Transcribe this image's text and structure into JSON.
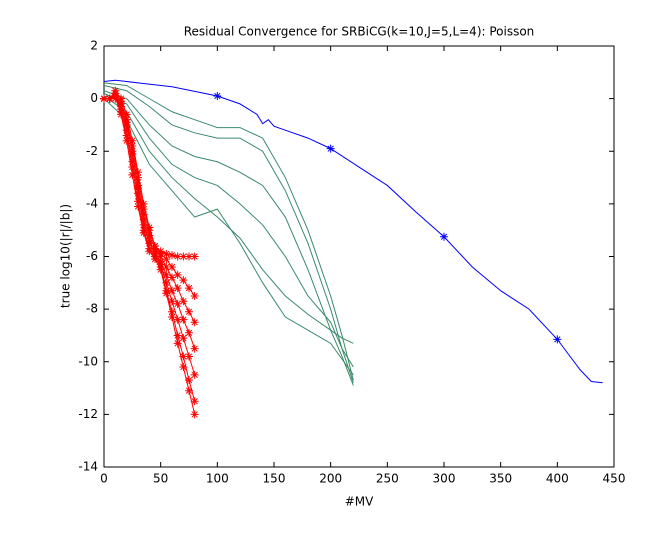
{
  "chart_data": {
    "type": "line",
    "title": "Residual Convergence for SRBiCG(k=10,J=5,L=4): Poisson",
    "x_label": "#MV",
    "y_label": "true log10(|r|/|b|)",
    "xlim": [
      0,
      450
    ],
    "ylim": [
      -14,
      2
    ],
    "xticks": [
      0,
      50,
      100,
      150,
      200,
      250,
      300,
      350,
      400,
      450
    ],
    "yticks": [
      -14,
      -12,
      -10,
      -8,
      -6,
      -4,
      -2,
      0,
      2
    ],
    "grid": false,
    "series": [
      {
        "color": "#0000ff",
        "line": true,
        "marker": "none",
        "x": [
          0,
          10,
          30,
          60,
          100,
          120,
          135,
          140,
          145,
          150,
          160,
          180,
          200,
          225,
          250,
          275,
          300,
          325,
          350,
          375,
          400,
          420,
          430,
          440
        ],
        "values": [
          0.65,
          0.7,
          0.6,
          0.45,
          0.1,
          -0.2,
          -0.6,
          -0.95,
          -0.8,
          -1.05,
          -1.2,
          -1.5,
          -1.9,
          -2.6,
          -3.3,
          -4.3,
          -5.25,
          -6.4,
          -7.3,
          -8.0,
          -9.15,
          -10.3,
          -10.75,
          -10.8
        ]
      },
      {
        "color": "#0000ff",
        "line": false,
        "marker": "*",
        "x": [
          100,
          200,
          300,
          400
        ],
        "values": [
          0.1,
          -1.9,
          -5.25,
          -9.15
        ]
      },
      {
        "color": "#3a8a6a",
        "line": true,
        "marker": "none",
        "x": [
          0,
          20,
          40,
          60,
          80,
          100,
          120,
          140,
          160,
          180,
          200,
          210,
          220
        ],
        "values": [
          0.6,
          0.5,
          0,
          -0.5,
          -0.8,
          -1.1,
          -1.1,
          -1.5,
          -3,
          -5,
          -7.5,
          -9,
          -10.7
        ]
      },
      {
        "color": "#3a8a6a",
        "line": true,
        "marker": "none",
        "x": [
          0,
          20,
          40,
          60,
          80,
          100,
          120,
          140,
          160,
          180,
          200,
          210,
          220
        ],
        "values": [
          0.5,
          0.3,
          -0.3,
          -1,
          -1.3,
          -1.5,
          -1.5,
          -2,
          -3.5,
          -5.5,
          -8,
          -9.5,
          -10.8
        ]
      },
      {
        "color": "#3a8a6a",
        "line": true,
        "marker": "none",
        "x": [
          0,
          20,
          40,
          60,
          80,
          100,
          120,
          140,
          160,
          180,
          200,
          210,
          220
        ],
        "values": [
          0.3,
          0,
          -1,
          -1.8,
          -2.2,
          -2.4,
          -2.8,
          -3.3,
          -4.5,
          -6.5,
          -8.8,
          -9.8,
          -10.9
        ]
      },
      {
        "color": "#3a8a6a",
        "line": true,
        "marker": "none",
        "x": [
          0,
          20,
          40,
          60,
          80,
          100,
          120,
          140,
          160,
          180,
          200,
          210,
          220
        ],
        "values": [
          0.2,
          -0.2,
          -1.5,
          -2.5,
          -3,
          -3.3,
          -4,
          -4.8,
          -6,
          -7.5,
          -8.5,
          -9.5,
          -10.2
        ]
      },
      {
        "color": "#3a8a6a",
        "line": true,
        "marker": "none",
        "x": [
          0,
          20,
          40,
          60,
          80,
          100,
          120,
          140,
          160,
          180,
          200,
          210,
          220
        ],
        "values": [
          0.1,
          -0.5,
          -2,
          -3,
          -3.8,
          -4.5,
          -5.3,
          -6.5,
          -7.5,
          -8.2,
          -8.8,
          -9.1,
          -9.3
        ]
      },
      {
        "color": "#3a8a6a",
        "line": true,
        "marker": "none",
        "x": [
          0,
          20,
          40,
          60,
          80,
          100,
          120,
          140,
          160,
          180,
          200,
          210,
          220
        ],
        "values": [
          0,
          -0.8,
          -2.5,
          -3.5,
          -4.5,
          -4.2,
          -5.5,
          -7,
          -8.3,
          -8.8,
          -9.3,
          -9.9,
          -10.5
        ]
      },
      {
        "color": "#ff0000",
        "line": true,
        "marker": "*",
        "x": [
          0,
          5,
          10,
          15,
          20,
          25,
          30,
          35,
          40,
          45,
          50,
          55,
          60,
          65,
          70,
          75,
          80
        ],
        "values": [
          0,
          0,
          0.2,
          -0.2,
          -0.8,
          -1.8,
          -3,
          -4.2,
          -5,
          -5.6,
          -5.8,
          -5.9,
          -5.95,
          -6,
          -6,
          -6,
          -6
        ]
      },
      {
        "color": "#ff0000",
        "line": true,
        "marker": "*",
        "x": [
          0,
          5,
          10,
          15,
          20,
          25,
          30,
          35,
          40,
          45,
          50,
          55,
          60,
          65,
          70,
          75,
          80
        ],
        "values": [
          0,
          0,
          0.3,
          0,
          -0.6,
          -1.6,
          -2.8,
          -4,
          -4.9,
          -5.6,
          -5.9,
          -6.1,
          -6.4,
          -6.7,
          -6.9,
          -7.2,
          -7.5
        ]
      },
      {
        "color": "#ff0000",
        "line": true,
        "marker": "*",
        "x": [
          0,
          5,
          10,
          15,
          20,
          25,
          30,
          35,
          40,
          45,
          50,
          55,
          60,
          65,
          70,
          75,
          80
        ],
        "values": [
          0,
          0,
          0.1,
          -0.3,
          -1,
          -2,
          -3.3,
          -4.4,
          -5.2,
          -5.7,
          -6,
          -6.4,
          -6.8,
          -7.2,
          -7.7,
          -8.1,
          -8.5
        ]
      },
      {
        "color": "#ff0000",
        "line": true,
        "marker": "*",
        "x": [
          0,
          5,
          10,
          15,
          20,
          25,
          30,
          35,
          40,
          45,
          50,
          55,
          60,
          65,
          70,
          75,
          80
        ],
        "values": [
          0,
          0,
          0.2,
          -0.1,
          -0.9,
          -2.1,
          -3.4,
          -4.6,
          -5.4,
          -5.8,
          -6.2,
          -6.7,
          -7.3,
          -7.8,
          -8.4,
          -8.9,
          -9.5
        ]
      },
      {
        "color": "#ff0000",
        "line": true,
        "marker": "*",
        "x": [
          0,
          5,
          10,
          15,
          20,
          25,
          30,
          35,
          40,
          45,
          50,
          55,
          60,
          65,
          70,
          75,
          80
        ],
        "values": [
          0,
          0,
          0.1,
          -0.4,
          -1.2,
          -2.4,
          -3.6,
          -4.8,
          -5.5,
          -5.9,
          -6.3,
          -7,
          -7.7,
          -8.4,
          -9.1,
          -9.8,
          -10.5
        ]
      },
      {
        "color": "#ff0000",
        "line": true,
        "marker": "*",
        "x": [
          0,
          5,
          10,
          15,
          20,
          25,
          30,
          35,
          40,
          45,
          50,
          55,
          60,
          65,
          70,
          75,
          80
        ],
        "values": [
          0,
          0,
          0,
          -0.5,
          -1.4,
          -2.6,
          -3.9,
          -5,
          -5.7,
          -6,
          -6.4,
          -7.3,
          -8.1,
          -9,
          -9.8,
          -10.7,
          -11.5
        ]
      },
      {
        "color": "#ff0000",
        "line": true,
        "marker": "*",
        "x": [
          0,
          5,
          10,
          15,
          20,
          25,
          30,
          35,
          40,
          45,
          50,
          55,
          60,
          65,
          70,
          75,
          80
        ],
        "values": [
          0,
          0,
          0.1,
          -0.6,
          -1.6,
          -2.9,
          -4.1,
          -5.1,
          -5.8,
          -6.1,
          -6.5,
          -7.4,
          -8.3,
          -9.3,
          -10.2,
          -11.1,
          -12
        ]
      }
    ]
  }
}
